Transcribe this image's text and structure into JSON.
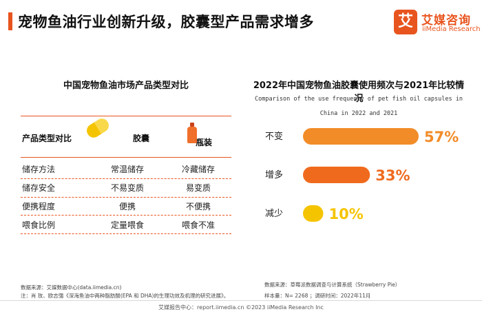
{
  "header": {
    "title": "宠物鱼油行业创新升级，胶囊型产品需求增多"
  },
  "logo": {
    "mark": "艾",
    "name": "艾媒咨询",
    "sub": "iiMedia Research"
  },
  "left_panel": {
    "title": "中国宠物鱼油市场产品类型对比",
    "header_label": "产品类型对比",
    "col1": "胶囊",
    "col2": "瓶装",
    "col1_icon": "capsule-icon",
    "col2_icon": "bottle-icon",
    "rows": [
      {
        "label": "储存方法",
        "col1": "常温储存",
        "col2": "冷藏储存"
      },
      {
        "label": "储存安全",
        "col1": "不易变质",
        "col2": "易变质"
      },
      {
        "label": "便携程度",
        "col1": "便携",
        "col2": "不便携"
      },
      {
        "label": "喂食比例",
        "col1": "定量喂食",
        "col2": "喂食不准"
      }
    ],
    "source": "数据来源：艾媒数据中心(data.iimedia.cn)",
    "note": "注：肖 玫、欧志强《深海鱼油中两种脂肪酸(EPA 和 DHA)的生理功效及机理的研究进展》。"
  },
  "right_panel": {
    "source": "数据来源：草莓派数据调查与计算系统（Strawberry Pie）",
    "sample": "样本量：N= 2268 ；调研时间：2022年11月"
  },
  "chart_data": {
    "type": "bar",
    "orientation": "horizontal",
    "title": "2022年中国宠物鱼油胶囊使用频次与2021年比较情况",
    "subtitle": "Comparison of the use frequency of pet fish oil capsules in China in 2022 and 2021",
    "categories": [
      "不变",
      "增多",
      "减少"
    ],
    "values": [
      57,
      33,
      10
    ],
    "labels": [
      "57%",
      "33%",
      "10%"
    ],
    "unit": "%",
    "xlim": [
      0,
      57
    ],
    "colors": [
      "#f28c28",
      "#f06a1e",
      "#f5c400"
    ],
    "grid": false,
    "legend": "none"
  },
  "footer": {
    "text": "艾媒报告中心：report.iimedia.cn  ©2023  iiMedia Research Inc"
  }
}
